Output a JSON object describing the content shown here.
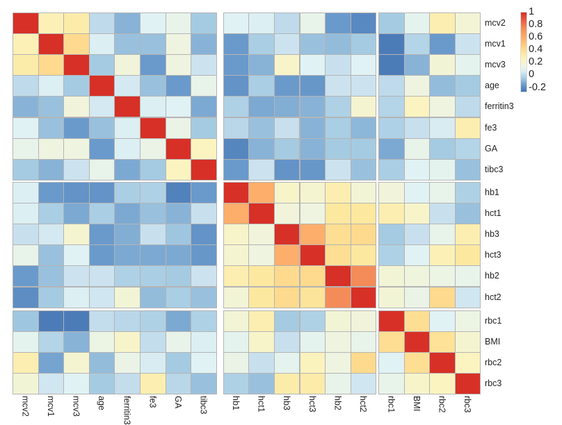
{
  "chart_data": {
    "type": "heatmap",
    "title": "",
    "variables": [
      "mcv2",
      "mcv1",
      "mcv3",
      "age",
      "ferritin3",
      "fe3",
      "GA",
      "tibc3",
      "hb1",
      "hct1",
      "hb3",
      "hct3",
      "hb2",
      "hct2",
      "rbc1",
      "BMI",
      "rbc2",
      "rbc3"
    ],
    "groups": [
      8,
      6,
      4
    ],
    "values": [
      [
        1,
        0.28,
        0.32,
        0.0,
        -0.1,
        0.08,
        0.12,
        -0.05,
        0.08,
        0.07,
        0.0,
        0.12,
        -0.15,
        -0.2,
        -0.05,
        0.1,
        0.3,
        0.18
      ],
      [
        0.28,
        1,
        0.42,
        0.07,
        -0.07,
        -0.07,
        0.15,
        -0.1,
        -0.15,
        -0.04,
        0.03,
        -0.07,
        -0.08,
        -0.05,
        -0.24,
        -0.02,
        -0.15,
        0.03
      ],
      [
        0.32,
        0.42,
        1,
        -0.05,
        0.17,
        -0.15,
        0.15,
        0.03,
        -0.15,
        -0.1,
        0.22,
        0.08,
        0.02,
        0.08,
        -0.24,
        -0.1,
        0.18,
        0.1
      ],
      [
        0.0,
        0.07,
        -0.05,
        1,
        0.05,
        -0.07,
        -0.15,
        0.12,
        -0.17,
        -0.04,
        -0.15,
        -0.16,
        0.03,
        0.03,
        0.0,
        0.15,
        -0.08,
        -0.05
      ],
      [
        -0.1,
        -0.07,
        0.17,
        0.05,
        1,
        0.07,
        0.08,
        -0.12,
        -0.03,
        -0.12,
        -0.11,
        -0.1,
        -0.03,
        0.2,
        -0.02,
        0.25,
        0.15,
        0.0
      ],
      [
        0.08,
        -0.07,
        -0.15,
        -0.07,
        0.07,
        1,
        0.13,
        -0.05,
        -0.01,
        -0.07,
        0.02,
        -0.1,
        -0.04,
        -0.09,
        -0.03,
        0.02,
        0.06,
        0.3
      ],
      [
        0.12,
        0.15,
        0.15,
        -0.15,
        0.07,
        0.13,
        1,
        0.25,
        -0.21,
        -0.1,
        -0.05,
        -0.1,
        -0.05,
        -0.05,
        -0.12,
        0.12,
        -0.05,
        -0.02
      ],
      [
        -0.05,
        -0.1,
        0.03,
        0.12,
        -0.12,
        -0.05,
        0.25,
        1,
        -0.15,
        0.03,
        -0.17,
        -0.16,
        0.03,
        -0.07,
        -0.04,
        0.08,
        0.1,
        -0.07
      ],
      [
        0.07,
        -0.15,
        -0.17,
        -0.17,
        -0.04,
        -0.03,
        -0.22,
        -0.15,
        1,
        0.6,
        0.22,
        0.2,
        0.3,
        0.18,
        0.17,
        0.08,
        0.12,
        -0.03
      ],
      [
        0.07,
        -0.04,
        -0.12,
        -0.04,
        -0.12,
        -0.07,
        -0.1,
        0.02,
        0.6,
        1,
        0.17,
        0.15,
        0.35,
        0.35,
        0.3,
        0.22,
        0.02,
        -0.07
      ],
      [
        0.02,
        0.05,
        0.2,
        -0.15,
        -0.11,
        0.02,
        -0.06,
        -0.17,
        0.22,
        0.17,
        1,
        0.6,
        0.4,
        0.42,
        -0.05,
        0.02,
        0.12,
        0.3
      ],
      [
        0.12,
        -0.07,
        0.08,
        -0.15,
        -0.12,
        -0.12,
        -0.12,
        -0.16,
        0.2,
        0.15,
        0.6,
        1,
        0.4,
        0.35,
        -0.03,
        0.08,
        0.28,
        0.35
      ],
      [
        -0.15,
        -0.07,
        0.03,
        0.03,
        -0.03,
        -0.04,
        -0.05,
        0.03,
        0.3,
        0.35,
        0.42,
        0.42,
        1,
        0.75,
        0.18,
        0.16,
        0.14,
        0.12
      ],
      [
        -0.19,
        -0.05,
        0.07,
        0.04,
        0.18,
        -0.08,
        -0.04,
        -0.07,
        0.18,
        0.35,
        0.42,
        0.37,
        0.75,
        1,
        0.18,
        0.13,
        0.42,
        0.04
      ],
      [
        -0.06,
        -0.24,
        -0.24,
        0.01,
        -0.01,
        -0.03,
        -0.12,
        -0.03,
        0.18,
        0.3,
        -0.05,
        -0.03,
        0.18,
        0.17,
        1,
        0.4,
        0.08,
        0.14
      ],
      [
        0.1,
        -0.02,
        -0.1,
        0.14,
        0.22,
        0.01,
        0.12,
        0.07,
        0.1,
        0.22,
        0.02,
        0.1,
        0.15,
        0.12,
        0.4,
        1,
        0.38,
        0.2
      ],
      [
        0.3,
        -0.13,
        0.2,
        -0.08,
        0.13,
        0.06,
        -0.05,
        0.08,
        0.13,
        0.02,
        0.1,
        0.26,
        0.15,
        0.42,
        0.08,
        0.4,
        1,
        0.25
      ],
      [
        0.18,
        0.04,
        0.08,
        -0.05,
        0.01,
        0.3,
        -0.01,
        -0.07,
        -0.03,
        -0.07,
        0.32,
        0.32,
        0.12,
        0.04,
        0.12,
        0.22,
        0.25,
        1
      ]
    ],
    "colorbar": {
      "ticks": [
        "1",
        "0.8",
        "0.6",
        "0.4",
        "0.2",
        "0",
        "-0.2"
      ],
      "range": [
        -0.26,
        1
      ],
      "low_color": "#4575b4",
      "mid_color": "#ffffbf",
      "high_color": "#d73027"
    },
    "legend_position": "top-right"
  }
}
